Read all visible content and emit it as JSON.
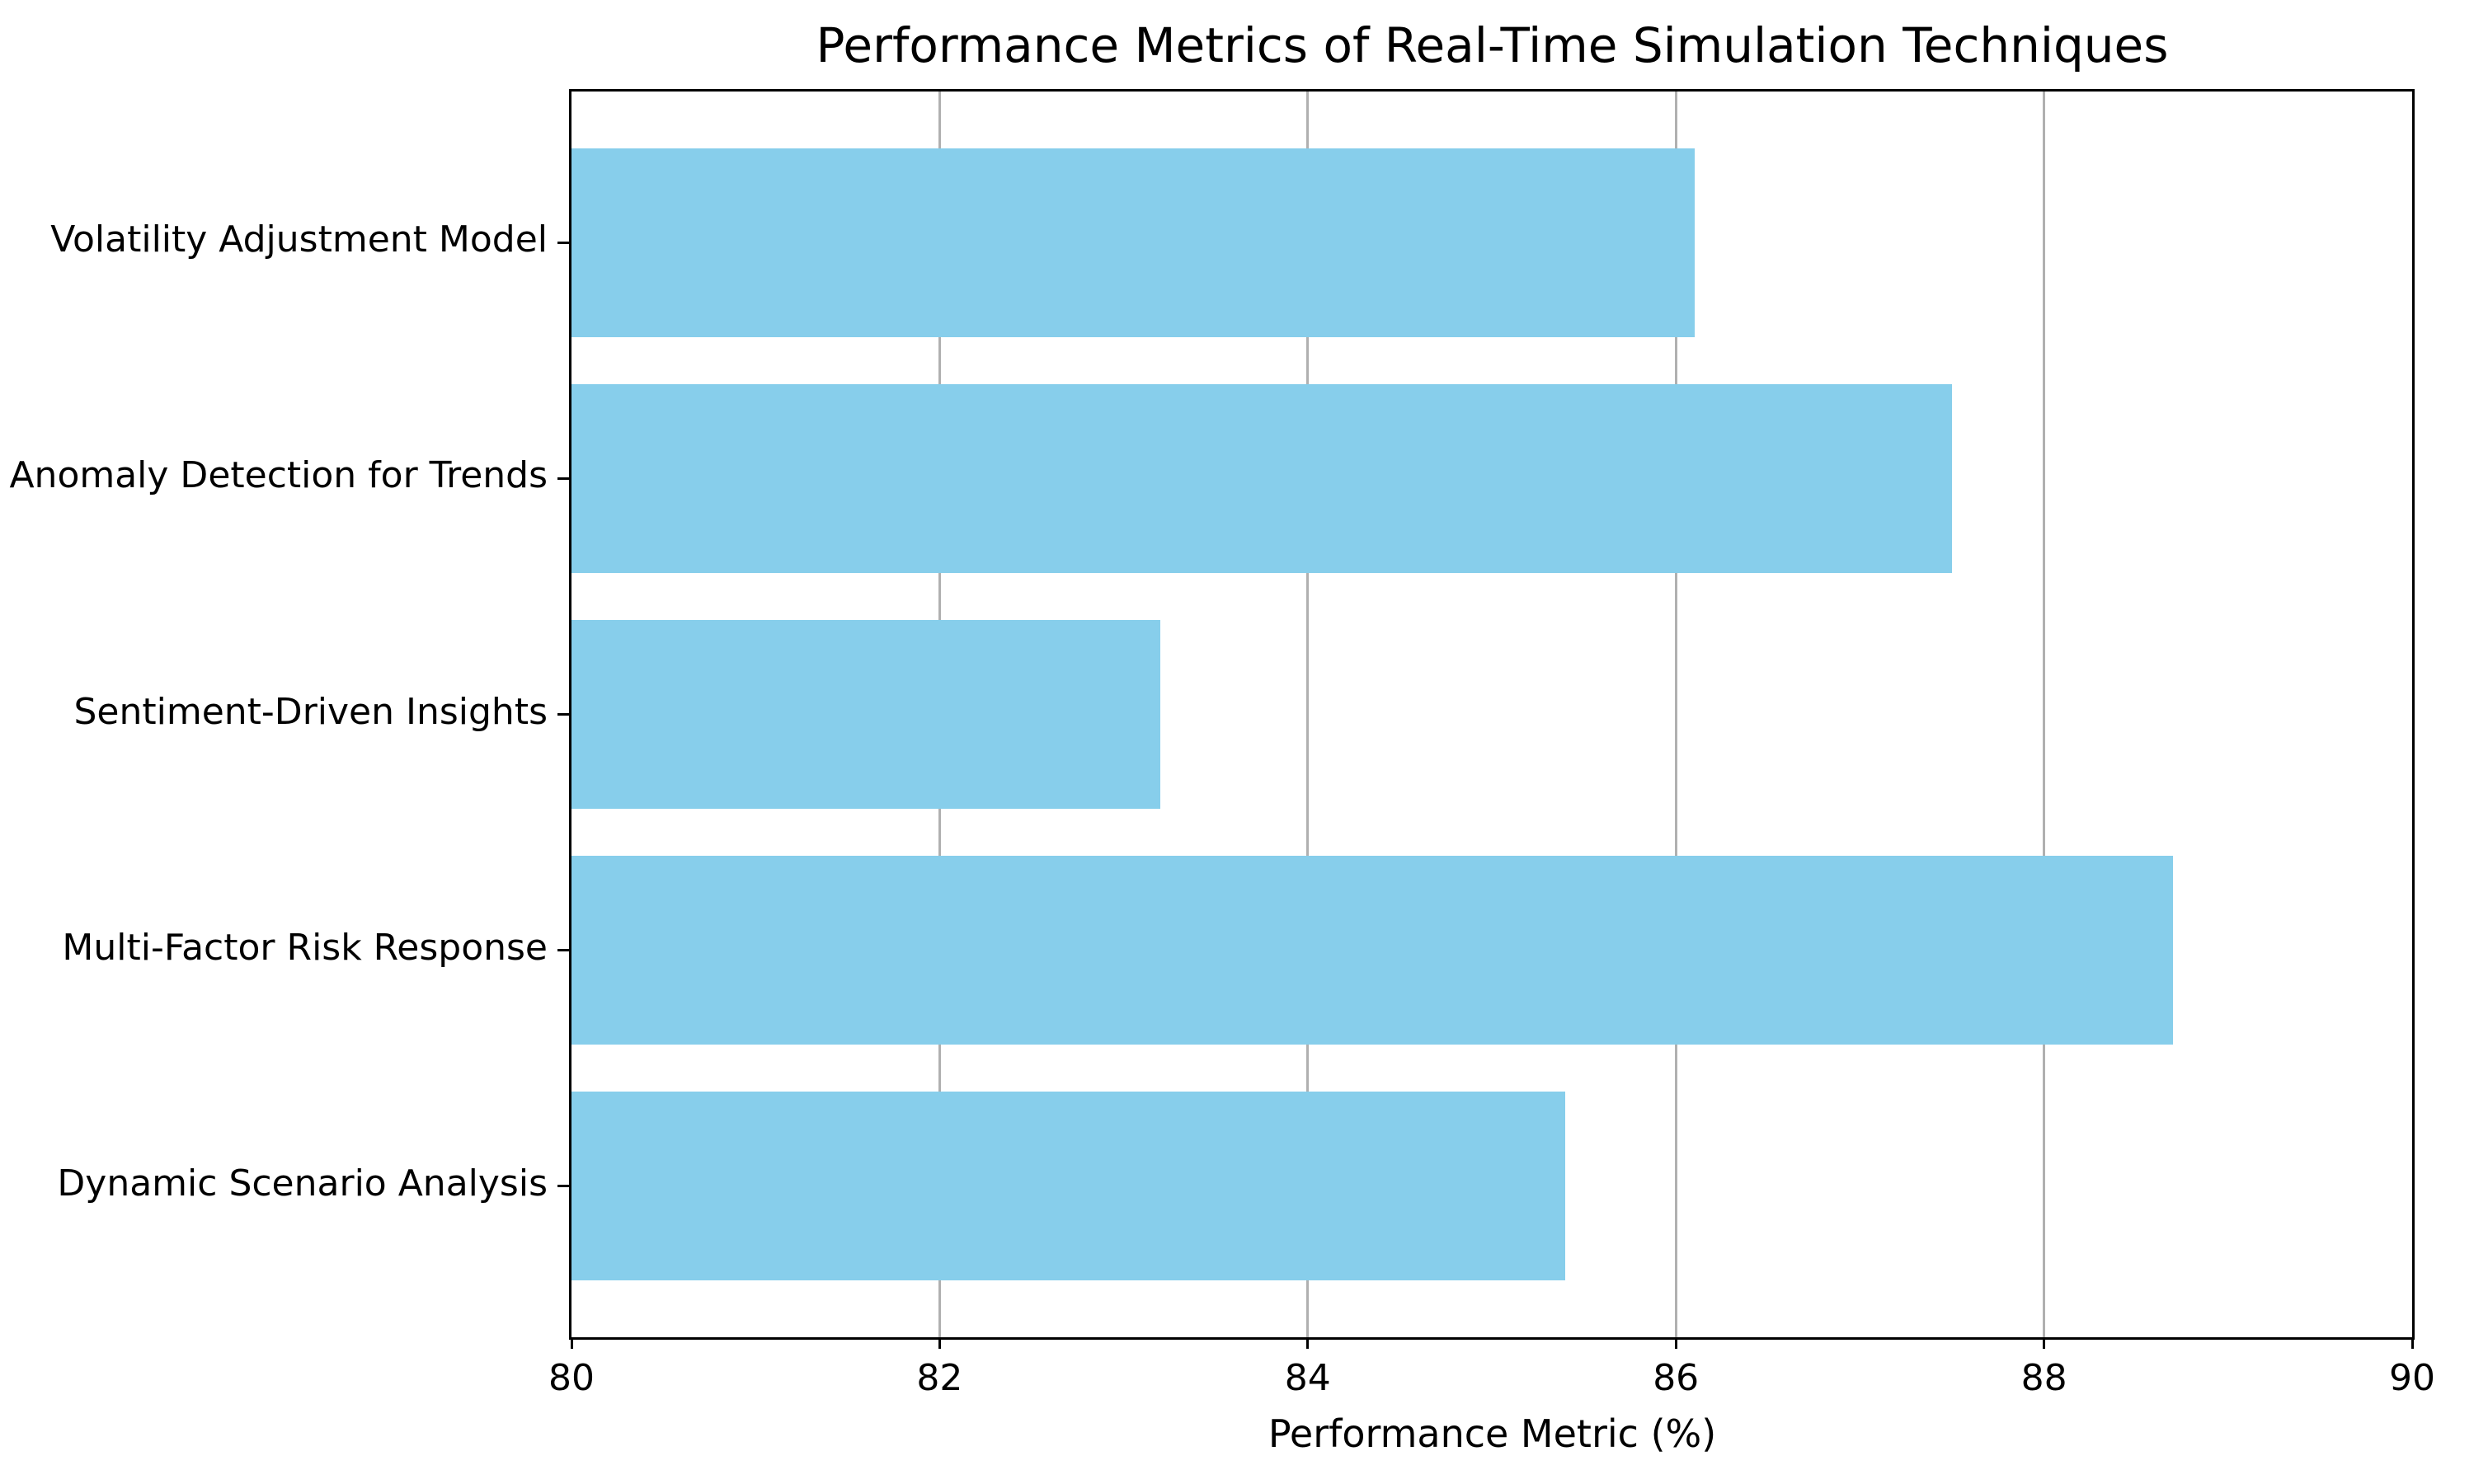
{
  "figure": {
    "title": "Performance Metrics of Real-Time Simulation Techniques"
  },
  "chart_data": {
    "type": "bar",
    "orientation": "horizontal",
    "title": "Performance Metrics of Real-Time Simulation Techniques",
    "categories": [
      "Volatility Adjustment Model",
      "Anomaly Detection for Trends",
      "Sentiment-Driven Insights",
      "Multi-Factor Risk Response",
      "Dynamic Scenario Analysis"
    ],
    "values": [
      86.1,
      87.5,
      83.2,
      88.7,
      85.4
    ],
    "xlabel": "Performance Metric (%)",
    "xlim": [
      80,
      90
    ],
    "xticks": [
      80,
      82,
      84,
      86,
      88,
      90
    ],
    "bar_color": "#87CEEB",
    "grid": "vertical",
    "grid_color": "#B0B0B0",
    "axis_color": "#000000",
    "background": "#FFFFFF",
    "legend": "none"
  }
}
